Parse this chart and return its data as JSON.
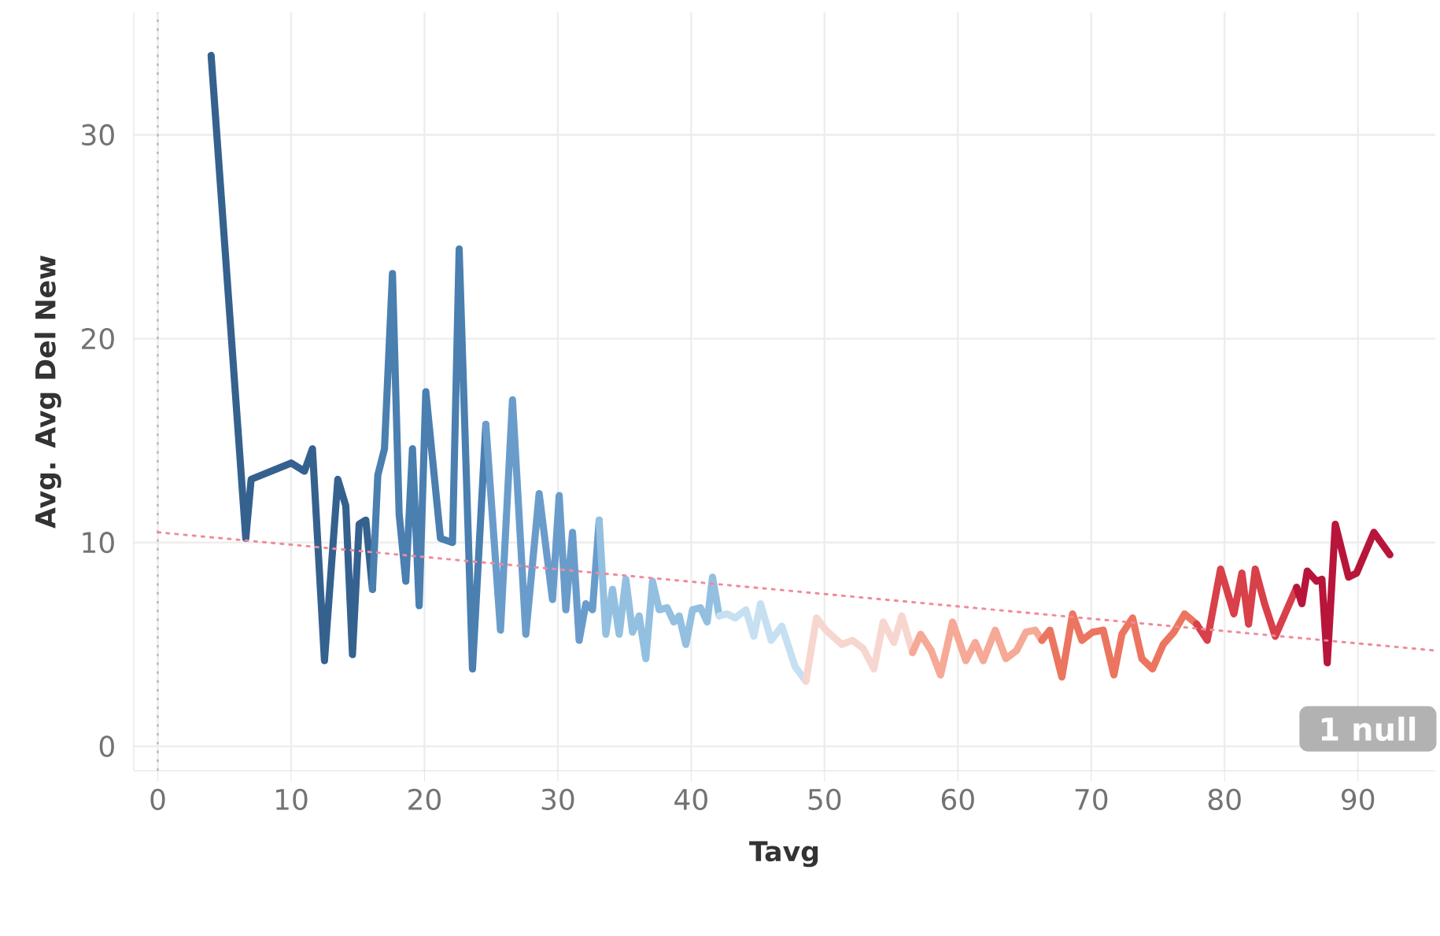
{
  "chart_data": {
    "type": "line",
    "xlabel": "Tavg",
    "ylabel": "Avg. Avg Del New",
    "xlim": [
      -1.8,
      95.8
    ],
    "ylim": [
      -1.2,
      36
    ],
    "xticks": [
      0,
      10,
      20,
      30,
      40,
      50,
      60,
      70,
      80,
      90
    ],
    "yticks": [
      0,
      10,
      20,
      30
    ],
    "grid": true,
    "marker": "none",
    "ref_lines": [
      {
        "axis": "x",
        "value": 0,
        "color": "#b0b0b0",
        "line_style": "dotted"
      }
    ],
    "annotations": [
      "1 null"
    ],
    "series": [
      {
        "color": "#35618f",
        "x": [
          4.0,
          6.6,
          7.0,
          10.0,
          11.0,
          11.6,
          12.5,
          13.5,
          14.1,
          14.6,
          15.1,
          15.6,
          16.1
        ],
        "values": [
          33.9,
          10.2,
          13.1,
          13.9,
          13.5,
          14.6,
          4.2,
          13.1,
          11.8,
          4.5,
          10.9,
          11.1,
          7.7
        ]
      },
      {
        "color": "#4a7fb0",
        "x": [
          16.1,
          16.5,
          17.0,
          17.6,
          18.1,
          18.6,
          19.1,
          19.6,
          20.1,
          21.2,
          22.1,
          22.6,
          23.6,
          24.6
        ],
        "values": [
          7.7,
          13.3,
          14.6,
          23.2,
          11.4,
          8.1,
          14.6,
          6.9,
          17.4,
          10.2,
          10.0,
          24.4,
          3.8,
          15.8
        ]
      },
      {
        "color": "#6a9ccb",
        "x": [
          24.6,
          25.7,
          26.6,
          27.6,
          28.6,
          29.6,
          30.1,
          30.6,
          31.1,
          31.6,
          32.1,
          32.6,
          33.1
        ],
        "values": [
          15.8,
          5.7,
          17.0,
          5.5,
          12.4,
          7.2,
          12.3,
          6.7,
          10.5,
          5.2,
          7.0,
          6.7,
          11.1
        ]
      },
      {
        "color": "#93c0e0",
        "x": [
          33.1,
          33.6,
          34.1,
          34.6,
          35.1,
          35.6,
          36.1,
          36.6,
          37.1,
          37.6,
          38.2,
          38.7,
          39.1,
          39.6,
          40.1,
          40.7,
          41.2,
          41.6,
          42.1
        ],
        "values": [
          11.1,
          5.5,
          7.7,
          5.5,
          8.2,
          5.6,
          6.4,
          4.3,
          8.1,
          6.7,
          6.8,
          6.1,
          6.4,
          5.0,
          6.7,
          6.8,
          6.1,
          8.3,
          6.4
        ]
      },
      {
        "color": "#c6e0f2",
        "x": [
          42.1,
          42.7,
          43.3,
          44.1,
          44.7,
          45.2,
          46.0,
          46.8,
          47.8,
          48.6
        ],
        "values": [
          6.4,
          6.5,
          6.3,
          6.7,
          5.4,
          7.0,
          5.2,
          5.9,
          3.9,
          3.2
        ]
      },
      {
        "color": "#f8d6d0",
        "x": [
          48.6,
          49.4,
          50.1,
          51.3,
          52.1,
          52.9,
          53.7,
          54.4,
          55.2,
          55.8,
          56.6
        ],
        "values": [
          3.2,
          6.3,
          5.7,
          5.0,
          5.2,
          4.8,
          3.8,
          6.1,
          5.1,
          6.4,
          4.6
        ]
      },
      {
        "color": "#f6a996",
        "x": [
          56.6,
          57.2,
          58.0,
          58.7,
          59.6,
          60.6,
          61.3,
          61.9,
          62.8,
          63.6,
          64.4,
          65.1,
          65.8,
          66.3
        ],
        "values": [
          4.6,
          5.5,
          4.7,
          3.5,
          6.1,
          4.2,
          5.1,
          4.2,
          5.7,
          4.3,
          4.7,
          5.6,
          5.7,
          5.2
        ]
      },
      {
        "color": "#ec7560",
        "x": [
          66.3,
          66.9,
          67.8,
          68.6,
          69.3,
          70.1,
          70.9,
          71.7,
          72.3,
          73.1,
          73.8,
          74.6,
          75.4,
          76.2,
          77.0,
          77.9
        ],
        "values": [
          5.2,
          5.7,
          3.4,
          6.5,
          5.2,
          5.6,
          5.7,
          3.5,
          5.5,
          6.3,
          4.3,
          3.8,
          5.0,
          5.6,
          6.5,
          6.0
        ]
      },
      {
        "color": "#d8404a",
        "x": [
          77.9,
          78.7,
          79.7,
          80.7,
          81.3,
          81.8,
          82.3,
          83.0,
          83.8,
          85.4
        ],
        "values": [
          6.0,
          5.2,
          8.7,
          6.5,
          8.5,
          6.0,
          8.7,
          7.0,
          5.4,
          7.8
        ]
      },
      {
        "color": "#b8153a",
        "x": [
          85.4,
          85.8,
          86.2,
          86.9,
          87.3,
          87.7,
          88.3,
          89.3,
          89.9,
          91.2,
          92.4
        ],
        "values": [
          7.8,
          7.0,
          8.6,
          8.1,
          8.2,
          4.1,
          10.9,
          8.3,
          8.5,
          10.5,
          9.4
        ]
      },
      {
        "color": "#f08a9a",
        "line_style": "dotted",
        "x": [
          0,
          95.8
        ],
        "values": [
          10.5,
          4.7
        ]
      }
    ]
  }
}
